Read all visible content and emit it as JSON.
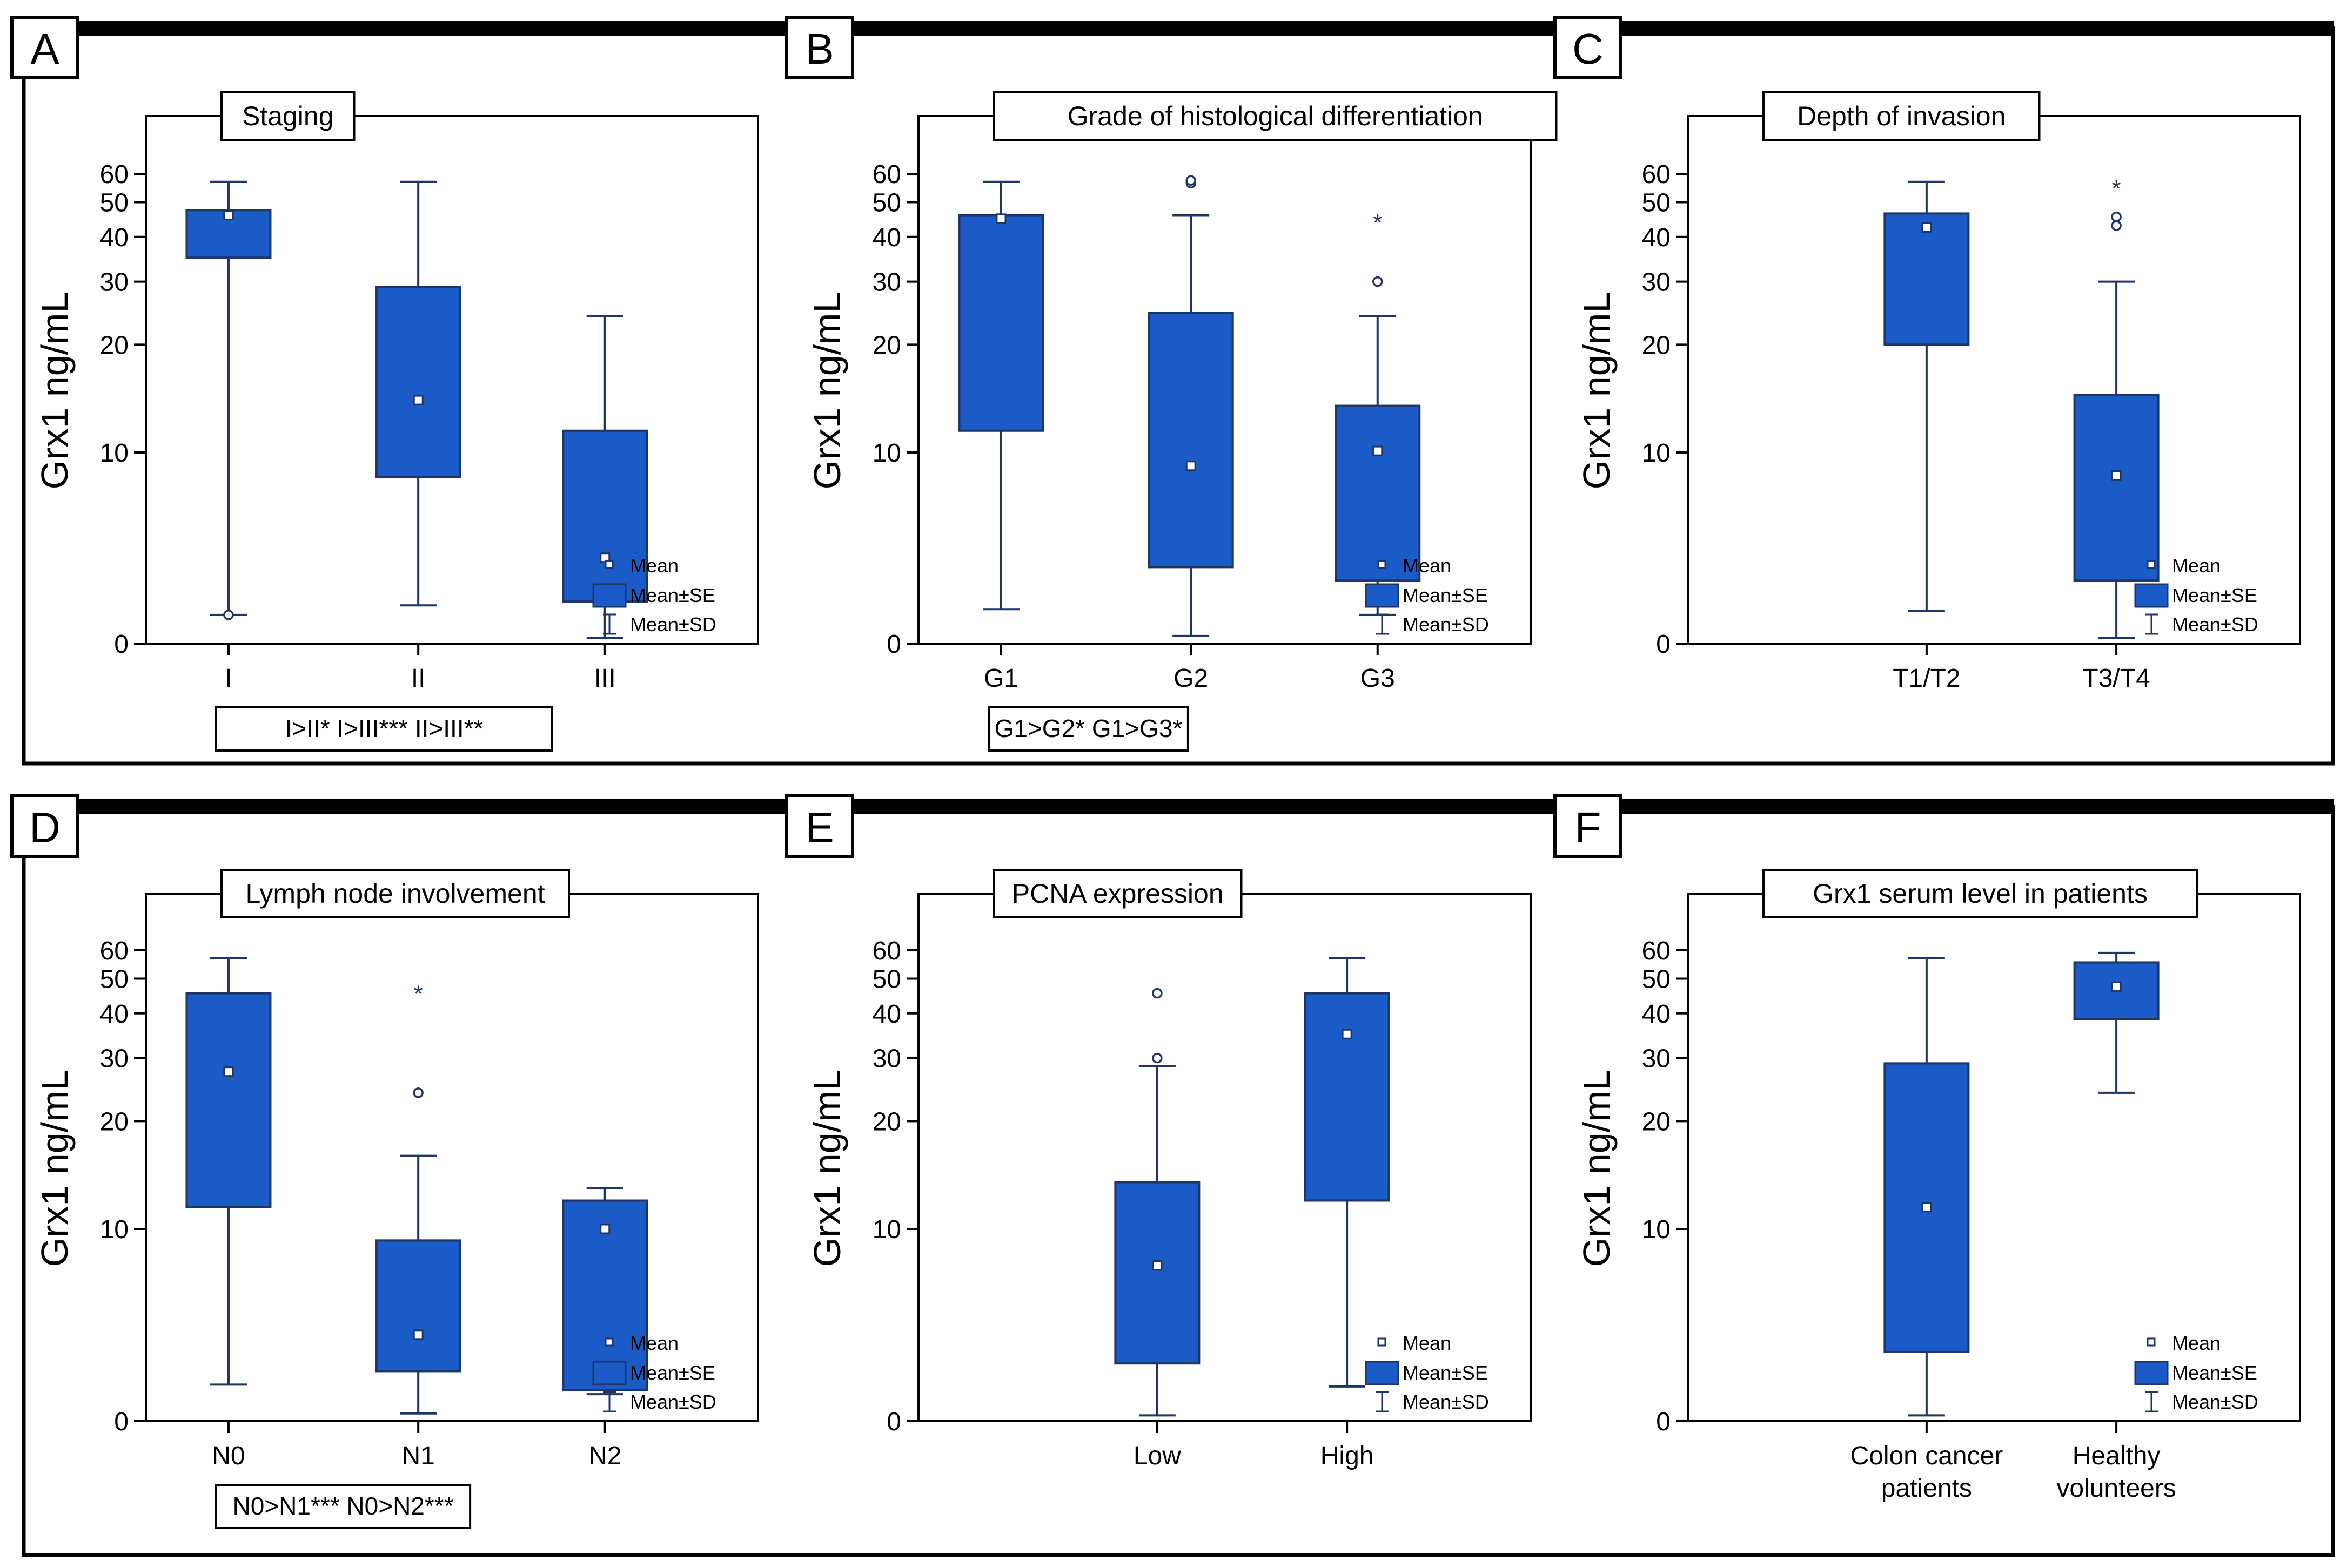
{
  "figure": {
    "colors": {
      "box": "#1a5bc7",
      "line": "#1f3566",
      "frame": "#000000"
    },
    "legend": {
      "mean": "Mean",
      "se": "Mean±SE",
      "sd": "Mean±SD"
    }
  },
  "chart_data": [
    {
      "id": "A",
      "panel_label": "A",
      "type": "box",
      "title": "Staging",
      "ylabel": "Grx1 ng/mL",
      "yticks": [
        0,
        10,
        20,
        30,
        40,
        50,
        60
      ],
      "categories": [
        "I",
        "II",
        "III"
      ],
      "series": [
        {
          "name": "I",
          "sd_low": 1.5,
          "se_low": 35,
          "mean": 46,
          "se_high": 47.5,
          "sd_high": 57,
          "outliers": [
            {
              "value": 1.5,
              "marker": "circle"
            }
          ]
        },
        {
          "name": "II",
          "sd_low": 2,
          "se_low": 8.7,
          "mean": 14,
          "se_high": 29,
          "sd_high": 57,
          "outliers": []
        },
        {
          "name": "III",
          "sd_low": 0.3,
          "se_low": 2.2,
          "mean": 4.5,
          "se_high": 11.5,
          "sd_high": 24,
          "outliers": []
        }
      ],
      "note": "I>II* I>III*** II>III**"
    },
    {
      "id": "B",
      "panel_label": "B",
      "type": "box",
      "title": "Grade of histological differentiation",
      "ylabel": "Grx1 ng/mL",
      "yticks": [
        0,
        10,
        20,
        30,
        40,
        50,
        60
      ],
      "categories": [
        "G1",
        "G2",
        "G3"
      ],
      "series": [
        {
          "name": "G1",
          "sd_low": 1.8,
          "se_low": 11.5,
          "mean": 45,
          "se_high": 46,
          "sd_high": 57,
          "outliers": []
        },
        {
          "name": "G2",
          "sd_low": 0.4,
          "se_low": 4,
          "mean": 9.3,
          "se_high": 24.5,
          "sd_high": 46,
          "outliers": [
            {
              "value": 56.5,
              "marker": "circle"
            },
            {
              "value": 57.5,
              "marker": "circle"
            }
          ]
        },
        {
          "name": "G3",
          "sd_low": 1.5,
          "se_low": 3.3,
          "mean": 10.1,
          "se_high": 13.5,
          "sd_high": 24,
          "outliers": [
            {
              "value": 30,
              "marker": "circle"
            },
            {
              "value": 45,
              "marker": "star"
            }
          ]
        }
      ],
      "note": "G1>G2* G1>G3*"
    },
    {
      "id": "C",
      "panel_label": "C",
      "type": "box",
      "title": "Depth of invasion",
      "ylabel": "Grx1 ng/mL",
      "yticks": [
        0,
        10,
        20,
        30,
        40,
        50,
        60
      ],
      "categories": [
        "T1/T2",
        "T3/T4"
      ],
      "series": [
        {
          "name": "T1/T2",
          "sd_low": 1.7,
          "se_low": 20,
          "mean": 42.5,
          "se_high": 46.5,
          "sd_high": 57,
          "outliers": []
        },
        {
          "name": "T3/T4",
          "sd_low": 0.3,
          "se_low": 3.3,
          "mean": 8.8,
          "se_high": 14.5,
          "sd_high": 30,
          "outliers": [
            {
              "value": 43,
              "marker": "circle"
            },
            {
              "value": 45.5,
              "marker": "circle"
            },
            {
              "value": 56,
              "marker": "star"
            }
          ]
        }
      ],
      "note": ""
    },
    {
      "id": "D",
      "panel_label": "D",
      "type": "box",
      "title": "Lymph node involvement",
      "ylabel": "Grx1 ng/mL",
      "yticks": [
        0,
        10,
        20,
        30,
        40,
        50,
        60
      ],
      "categories": [
        "N0",
        "N1",
        "N2"
      ],
      "series": [
        {
          "name": "N0",
          "sd_low": 1.9,
          "se_low": 11.5,
          "mean": 27.5,
          "se_high": 45.5,
          "sd_high": 57,
          "outliers": []
        },
        {
          "name": "N1",
          "sd_low": 0.4,
          "se_low": 2.6,
          "mean": 4.5,
          "se_high": 9.4,
          "sd_high": 16,
          "outliers": [
            {
              "value": 24,
              "marker": "circle"
            },
            {
              "value": 46.5,
              "marker": "star"
            }
          ]
        },
        {
          "name": "N2",
          "sd_low": 1.4,
          "se_low": 1.6,
          "mean": 10,
          "se_high": 12,
          "sd_high": 13,
          "outliers": []
        }
      ],
      "note": "N0>N1*** N0>N2***"
    },
    {
      "id": "E",
      "panel_label": "E",
      "type": "box",
      "title": "PCNA expression",
      "ylabel": "Grx1 ng/mL",
      "yticks": [
        0,
        10,
        20,
        30,
        40,
        50,
        60
      ],
      "categories": [
        "Low",
        "High"
      ],
      "series": [
        {
          "name": "Low",
          "sd_low": 0.3,
          "se_low": 3,
          "mean": 8.1,
          "se_high": 13.5,
          "sd_high": 28.5,
          "outliers": [
            {
              "value": 30,
              "marker": "circle"
            },
            {
              "value": 45.5,
              "marker": "circle"
            }
          ]
        },
        {
          "name": "High",
          "sd_low": 1.8,
          "se_low": 12,
          "mean": 35,
          "se_high": 45.5,
          "sd_high": 57,
          "outliers": []
        }
      ],
      "note": ""
    },
    {
      "id": "F",
      "panel_label": "F",
      "type": "box",
      "title": "Grx1 serum level in patients",
      "ylabel": "Grx1 ng/mL",
      "yticks": [
        0,
        10,
        20,
        30,
        40,
        50,
        60
      ],
      "categories": [
        "Colon cancer\npatients",
        "Healthy\nvolunteers"
      ],
      "series": [
        {
          "name": "Colon cancer patients",
          "sd_low": 0.3,
          "se_low": 3.6,
          "mean": 11.5,
          "se_high": 29,
          "sd_high": 57,
          "outliers": []
        },
        {
          "name": "Healthy volunteers",
          "sd_low": 24,
          "se_low": 38.5,
          "mean": 47.5,
          "se_high": 55.5,
          "sd_high": 59,
          "outliers": []
        }
      ],
      "note": ""
    }
  ]
}
